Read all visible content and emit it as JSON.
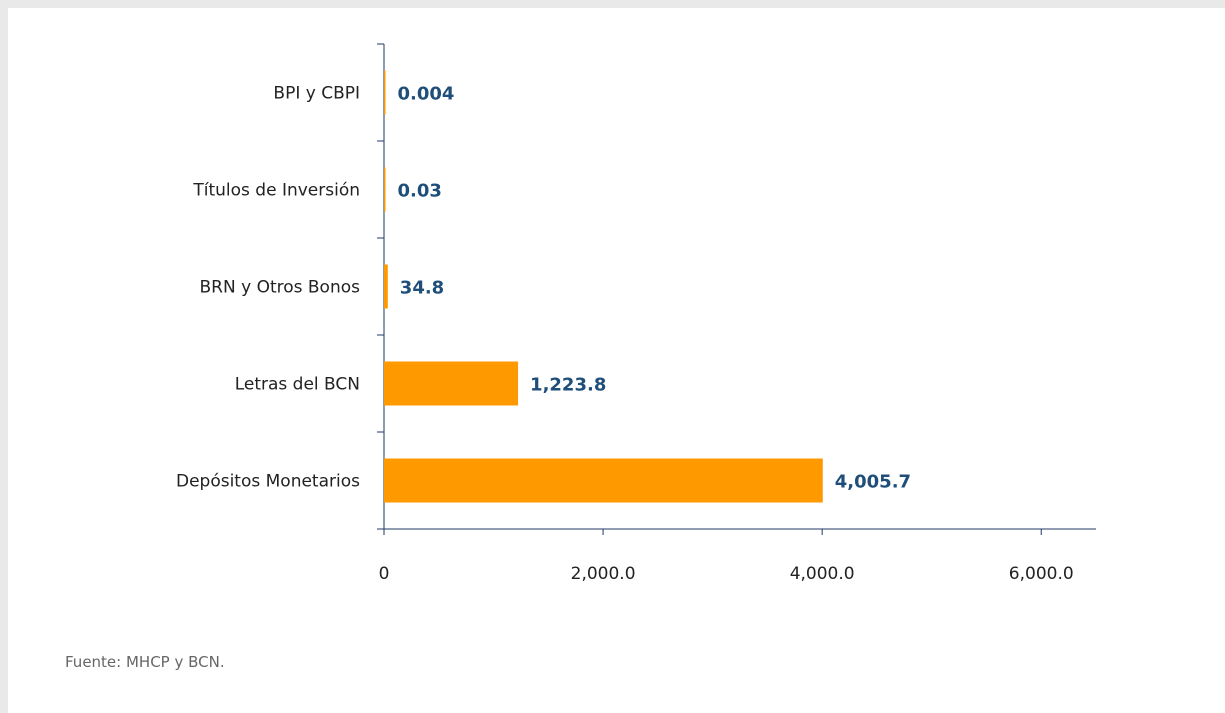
{
  "chart_data": {
    "type": "bar",
    "orientation": "horizontal",
    "categories": [
      "BPI y CBPI",
      "Títulos de Inversión",
      "BRN y Otros Bonos",
      "Letras del BCN",
      "Depósitos Monetarios"
    ],
    "values": [
      0.004,
      0.03,
      34.8,
      1223.8,
      4005.7
    ],
    "value_labels": [
      "0.004",
      "0.03",
      "34.8",
      "1,223.8",
      "4,005.7"
    ],
    "xticks": [
      0,
      2000,
      4000,
      6000
    ],
    "xtick_labels": [
      "0",
      "2,000.0",
      "4,000.0",
      "6,000.0"
    ],
    "xlim": [
      0,
      6500
    ],
    "title": "",
    "xlabel": "",
    "ylabel": "",
    "bar_color": "#ff9900",
    "label_color": "#1f4e79",
    "axis_color": "#1f3864",
    "grid": false
  },
  "source_text": "Fuente: MHCP y BCN."
}
